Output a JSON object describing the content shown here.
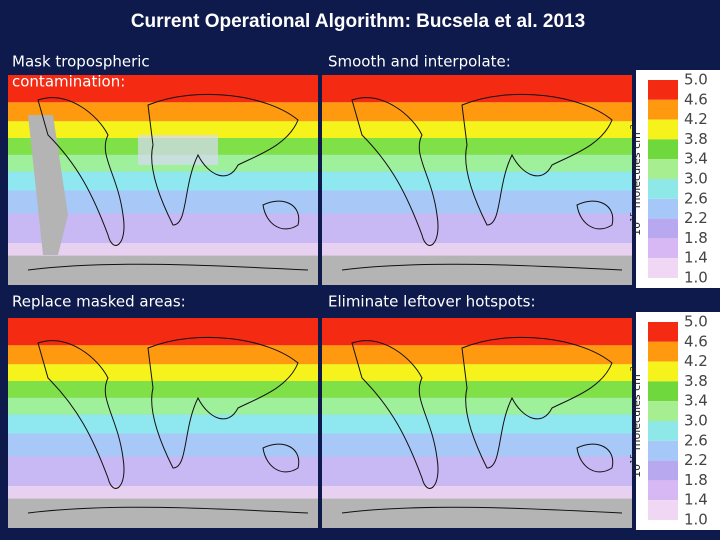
{
  "header": {
    "title": "Current Operational Algorithm: Bucsela et al. 2013"
  },
  "panels": [
    {
      "label_lines": [
        "Mask tropospheric",
        "contamination:"
      ]
    },
    {
      "label_lines": [
        "Smooth and interpolate:"
      ]
    },
    {
      "label_lines": [
        "Replace masked areas:"
      ]
    },
    {
      "label_lines": [
        "Eliminate leftover hotspots:"
      ]
    }
  ],
  "colorbars": [
    {
      "ticks": [
        "5.0",
        "4.6",
        "4.2",
        "3.8",
        "3.4",
        "3.0",
        "2.6",
        "2.2",
        "1.8",
        "1.4",
        "1.0"
      ],
      "unit": {
        "base": "10",
        "exp": "15",
        "text": " molecules cm",
        "exp2": "-2"
      }
    },
    {
      "ticks": [
        "5.0",
        "4.6",
        "4.2",
        "3.8",
        "3.4",
        "3.0",
        "2.6",
        "2.2",
        "1.8",
        "1.4",
        "1.0"
      ],
      "unit": {
        "base": "10",
        "exp": "15",
        "text": " molecules cm",
        "exp2": "-2"
      }
    }
  ]
}
